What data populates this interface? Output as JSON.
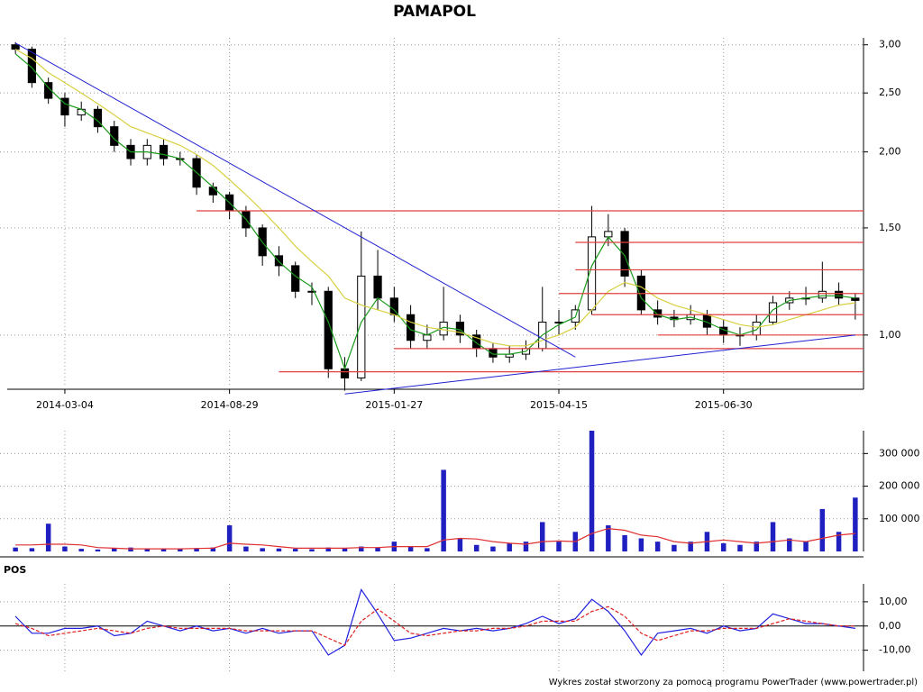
{
  "chart_data": [
    {
      "type": "candlestick",
      "title": "PAMAPOL",
      "log": true,
      "grid": true,
      "categories": [
        null,
        null,
        null,
        "2014-03-04",
        null,
        null,
        null,
        null,
        null,
        null,
        null,
        null,
        null,
        "2014-08-29",
        null,
        null,
        null,
        null,
        null,
        null,
        null,
        null,
        null,
        "2015-01-27",
        null,
        null,
        null,
        null,
        null,
        null,
        null,
        null,
        null,
        "2015-04-15",
        null,
        null,
        null,
        null,
        null,
        null,
        null,
        null,
        null,
        "2015-06-30",
        null,
        null,
        null,
        null,
        null,
        null,
        null,
        null
      ],
      "open": [
        3.0,
        2.95,
        2.6,
        2.45,
        2.3,
        2.35,
        2.2,
        2.05,
        1.95,
        2.05,
        1.95,
        1.95,
        1.75,
        1.7,
        1.6,
        1.5,
        1.35,
        1.3,
        1.18,
        1.18,
        0.88,
        0.85,
        1.25,
        1.15,
        1.08,
        0.98,
        1.0,
        1.05,
        1.0,
        0.95,
        0.92,
        0.93,
        0.95,
        1.05,
        1.05,
        1.1,
        1.45,
        1.48,
        1.25,
        1.1,
        1.07,
        1.06,
        1.08,
        1.03,
        1.0,
        1.0,
        1.05,
        1.13,
        1.15,
        1.15,
        1.18,
        1.15
      ],
      "high": [
        3.03,
        2.98,
        2.65,
        2.5,
        2.42,
        2.38,
        2.25,
        2.1,
        2.1,
        2.1,
        2.0,
        1.98,
        1.78,
        1.72,
        1.63,
        1.52,
        1.4,
        1.32,
        1.22,
        1.2,
        0.92,
        1.48,
        1.38,
        1.2,
        1.12,
        1.04,
        1.2,
        1.08,
        1.02,
        0.97,
        0.96,
        0.98,
        1.2,
        1.1,
        1.12,
        1.63,
        1.58,
        1.5,
        1.28,
        1.14,
        1.1,
        1.12,
        1.1,
        1.06,
        1.03,
        1.08,
        1.16,
        1.18,
        1.2,
        1.32,
        1.22,
        1.17
      ],
      "low": [
        2.9,
        2.55,
        2.4,
        2.2,
        2.25,
        2.15,
        2.0,
        1.9,
        1.9,
        1.9,
        1.9,
        1.7,
        1.65,
        1.55,
        1.45,
        1.3,
        1.25,
        1.15,
        1.12,
        0.85,
        0.81,
        0.84,
        1.1,
        1.05,
        0.95,
        0.95,
        0.98,
        0.97,
        0.92,
        0.9,
        0.9,
        0.91,
        0.94,
        1.0,
        1.02,
        1.08,
        1.4,
        1.2,
        1.08,
        1.04,
        1.03,
        1.04,
        1.0,
        0.97,
        0.96,
        0.98,
        1.04,
        1.1,
        1.12,
        1.13,
        1.12,
        1.06
      ],
      "close": [
        2.95,
        2.6,
        2.45,
        2.3,
        2.35,
        2.2,
        2.05,
        1.95,
        2.05,
        1.95,
        1.95,
        1.75,
        1.7,
        1.6,
        1.5,
        1.35,
        1.3,
        1.18,
        1.18,
        0.88,
        0.85,
        1.25,
        1.15,
        1.08,
        0.98,
        1.0,
        1.05,
        1.0,
        0.95,
        0.92,
        0.93,
        0.95,
        1.05,
        1.05,
        1.1,
        1.45,
        1.48,
        1.25,
        1.1,
        1.07,
        1.06,
        1.08,
        1.03,
        1.0,
        1.0,
        1.05,
        1.13,
        1.15,
        1.15,
        1.18,
        1.15,
        1.14
      ],
      "series": [
        {
          "color": "#1a9a1a",
          "values": [
            2.9,
            2.75,
            2.55,
            2.4,
            2.35,
            2.25,
            2.1,
            2.0,
            2.0,
            1.98,
            1.95,
            1.85,
            1.75,
            1.65,
            1.55,
            1.42,
            1.32,
            1.25,
            1.2,
            1.05,
            0.88,
            1.05,
            1.15,
            1.1,
            1.02,
            1.0,
            1.03,
            1.02,
            0.97,
            0.93,
            0.93,
            0.94,
            1.0,
            1.04,
            1.07,
            1.3,
            1.45,
            1.35,
            1.15,
            1.08,
            1.06,
            1.07,
            1.05,
            1.02,
            1.0,
            1.02,
            1.1,
            1.14,
            1.15,
            1.16,
            1.16,
            1.15
          ]
        },
        {
          "color": "#d8d040",
          "values": [
            2.95,
            2.85,
            2.7,
            2.6,
            2.5,
            2.4,
            2.3,
            2.2,
            2.15,
            2.1,
            2.05,
            1.98,
            1.9,
            1.8,
            1.7,
            1.6,
            1.5,
            1.4,
            1.32,
            1.25,
            1.15,
            1.12,
            1.1,
            1.08,
            1.05,
            1.03,
            1.02,
            1.01,
            0.99,
            0.97,
            0.96,
            0.96,
            0.98,
            1.0,
            1.03,
            1.1,
            1.18,
            1.22,
            1.2,
            1.15,
            1.12,
            1.1,
            1.08,
            1.06,
            1.04,
            1.03,
            1.04,
            1.06,
            1.08,
            1.1,
            1.12,
            1.13
          ]
        }
      ],
      "hline_color": "#e04040",
      "hlines": [
        {
          "value": 1.6,
          "from": 11
        },
        {
          "value": 1.42,
          "from": 34
        },
        {
          "value": 1.28,
          "from": 34
        },
        {
          "value": 1.17,
          "from": 33
        },
        {
          "value": 1.08,
          "from": 35
        },
        {
          "value": 1.0,
          "from": 39
        },
        {
          "value": 0.95,
          "from": 23
        },
        {
          "value": 0.87,
          "from": 16
        }
      ],
      "trend_color": "#2020d0",
      "trendlines": [
        {
          "x": [
            0,
            34
          ],
          "y": [
            3.02,
            0.92
          ]
        },
        {
          "x": [
            20,
            51
          ],
          "y": [
            0.8,
            1.0
          ]
        }
      ],
      "ylim": [
        0.82,
        3.08
      ],
      "yticks": [
        {
          "value": 1.0,
          "label": "1,00"
        },
        {
          "value": 1.5,
          "label": "1,50"
        },
        {
          "value": 2.0,
          "label": "2,00"
        },
        {
          "value": 2.5,
          "label": "2,50"
        },
        {
          "value": 3.0,
          "label": "3,00"
        }
      ]
    },
    {
      "type": "bar",
      "color": "#2020c0",
      "values": [
        12000,
        10000,
        85000,
        15000,
        8000,
        6000,
        10000,
        12000,
        9000,
        7000,
        8000,
        10000,
        12000,
        80000,
        15000,
        10000,
        9000,
        8000,
        7000,
        12000,
        10000,
        15000,
        12000,
        30000,
        15000,
        10000,
        250000,
        40000,
        20000,
        15000,
        25000,
        30000,
        90000,
        30000,
        60000,
        370000,
        80000,
        50000,
        40000,
        30000,
        20000,
        30000,
        60000,
        25000,
        20000,
        30000,
        90000,
        40000,
        30000,
        130000,
        60000,
        165000
      ],
      "series": [
        {
          "color": "#e03030",
          "values": [
            20000,
            20000,
            22000,
            22000,
            20000,
            12000,
            10000,
            8000,
            8000,
            8000,
            8000,
            9000,
            10000,
            25000,
            22000,
            20000,
            15000,
            10000,
            10000,
            10000,
            10000,
            12000,
            12000,
            15000,
            15000,
            15000,
            35000,
            40000,
            38000,
            30000,
            25000,
            22000,
            30000,
            32000,
            30000,
            55000,
            70000,
            65000,
            50000,
            45000,
            30000,
            25000,
            30000,
            35000,
            30000,
            25000,
            30000,
            35000,
            30000,
            40000,
            50000,
            55000
          ]
        }
      ],
      "ylim": [
        0,
        370000
      ],
      "yticks": [
        {
          "value": 100000,
          "label": "100 000"
        },
        {
          "value": 200000,
          "label": "200 000"
        },
        {
          "value": 300000,
          "label": "300 000"
        }
      ]
    },
    {
      "type": "line",
      "title": "POS",
      "series": [
        {
          "color": "#2020e0",
          "values": [
            4,
            -3,
            -3,
            -1,
            -1,
            0,
            -4,
            -3,
            2,
            0,
            -2,
            0,
            -2,
            -1,
            -3,
            -1,
            -3,
            -2,
            -2,
            -12,
            -8,
            15,
            5,
            -6,
            -5,
            -3,
            -1,
            -2,
            -1,
            -2,
            -1,
            1,
            4,
            1,
            3,
            11,
            6,
            -2,
            -12,
            -3,
            -2,
            -1,
            -3,
            0,
            -2,
            -1,
            5,
            3,
            1,
            1,
            0,
            -1
          ]
        },
        {
          "color": "#e02020",
          "dashed": true,
          "values": [
            1,
            -1,
            -4,
            -3,
            -2,
            -1,
            -2,
            -3,
            -1,
            0,
            -1,
            -1,
            -1,
            -1,
            -2,
            -2,
            -2,
            -2,
            -2,
            -5,
            -8,
            2,
            7,
            2,
            -3,
            -4,
            -3,
            -2,
            -2,
            -1,
            -1,
            0,
            2,
            2,
            2,
            6,
            8,
            4,
            -3,
            -6,
            -4,
            -2,
            -2,
            -1,
            -1,
            -1,
            1,
            3,
            2,
            1,
            0,
            0
          ]
        }
      ],
      "ylim": [
        -18.7,
        17.4
      ],
      "yticks": [
        {
          "value": -10,
          "label": "-10,00"
        },
        {
          "value": 0,
          "label": "0,00"
        },
        {
          "value": 10,
          "label": "10,00"
        }
      ]
    }
  ],
  "footer": "Wykres został stworzony za pomocą programu PowerTrader (www.powertrader.pl)"
}
